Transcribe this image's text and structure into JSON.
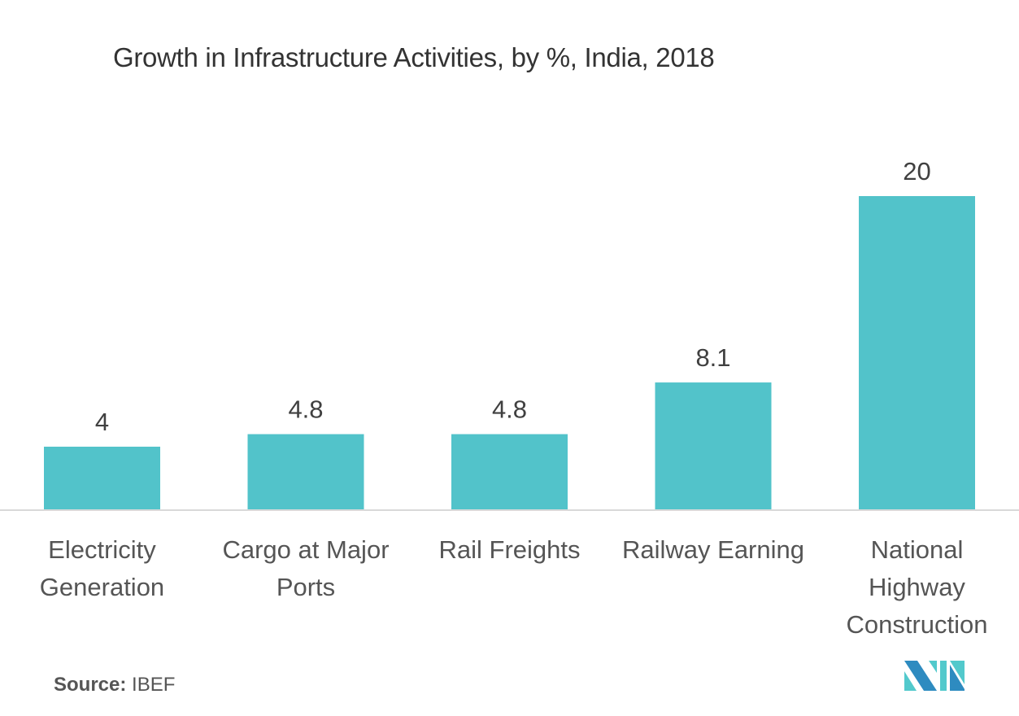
{
  "chart_data": {
    "type": "bar",
    "title": "Growth in Infrastructure Activities, by %, India, 2018",
    "categories": [
      [
        "Electricity",
        "Generation"
      ],
      [
        "Cargo at Major",
        "Ports"
      ],
      [
        "Rail Freights"
      ],
      [
        "Railway Earning"
      ],
      [
        "National",
        "Highway",
        "Construction"
      ]
    ],
    "category_names": [
      "Electricity Generation",
      "Cargo at Major Ports",
      "Rail Freights",
      "Railway Earning",
      "National Highway Construction"
    ],
    "values": [
      4,
      4.8,
      4.8,
      8.1,
      20
    ],
    "value_labels": [
      "4",
      "4.8",
      "4.8",
      "8.1",
      "20"
    ],
    "xlabel": "",
    "ylabel": "",
    "ylim": [
      0,
      20
    ],
    "grid": false,
    "legend": "none",
    "bar_color": "#52C3CA",
    "axis_color": "#D9D9D9"
  },
  "source": {
    "label": "Source:",
    "value": "IBEF"
  },
  "logo": {
    "name": "mordor-intelligence-logo",
    "colors": {
      "dark": "#2E8BC0",
      "light": "#52C9CC"
    }
  }
}
